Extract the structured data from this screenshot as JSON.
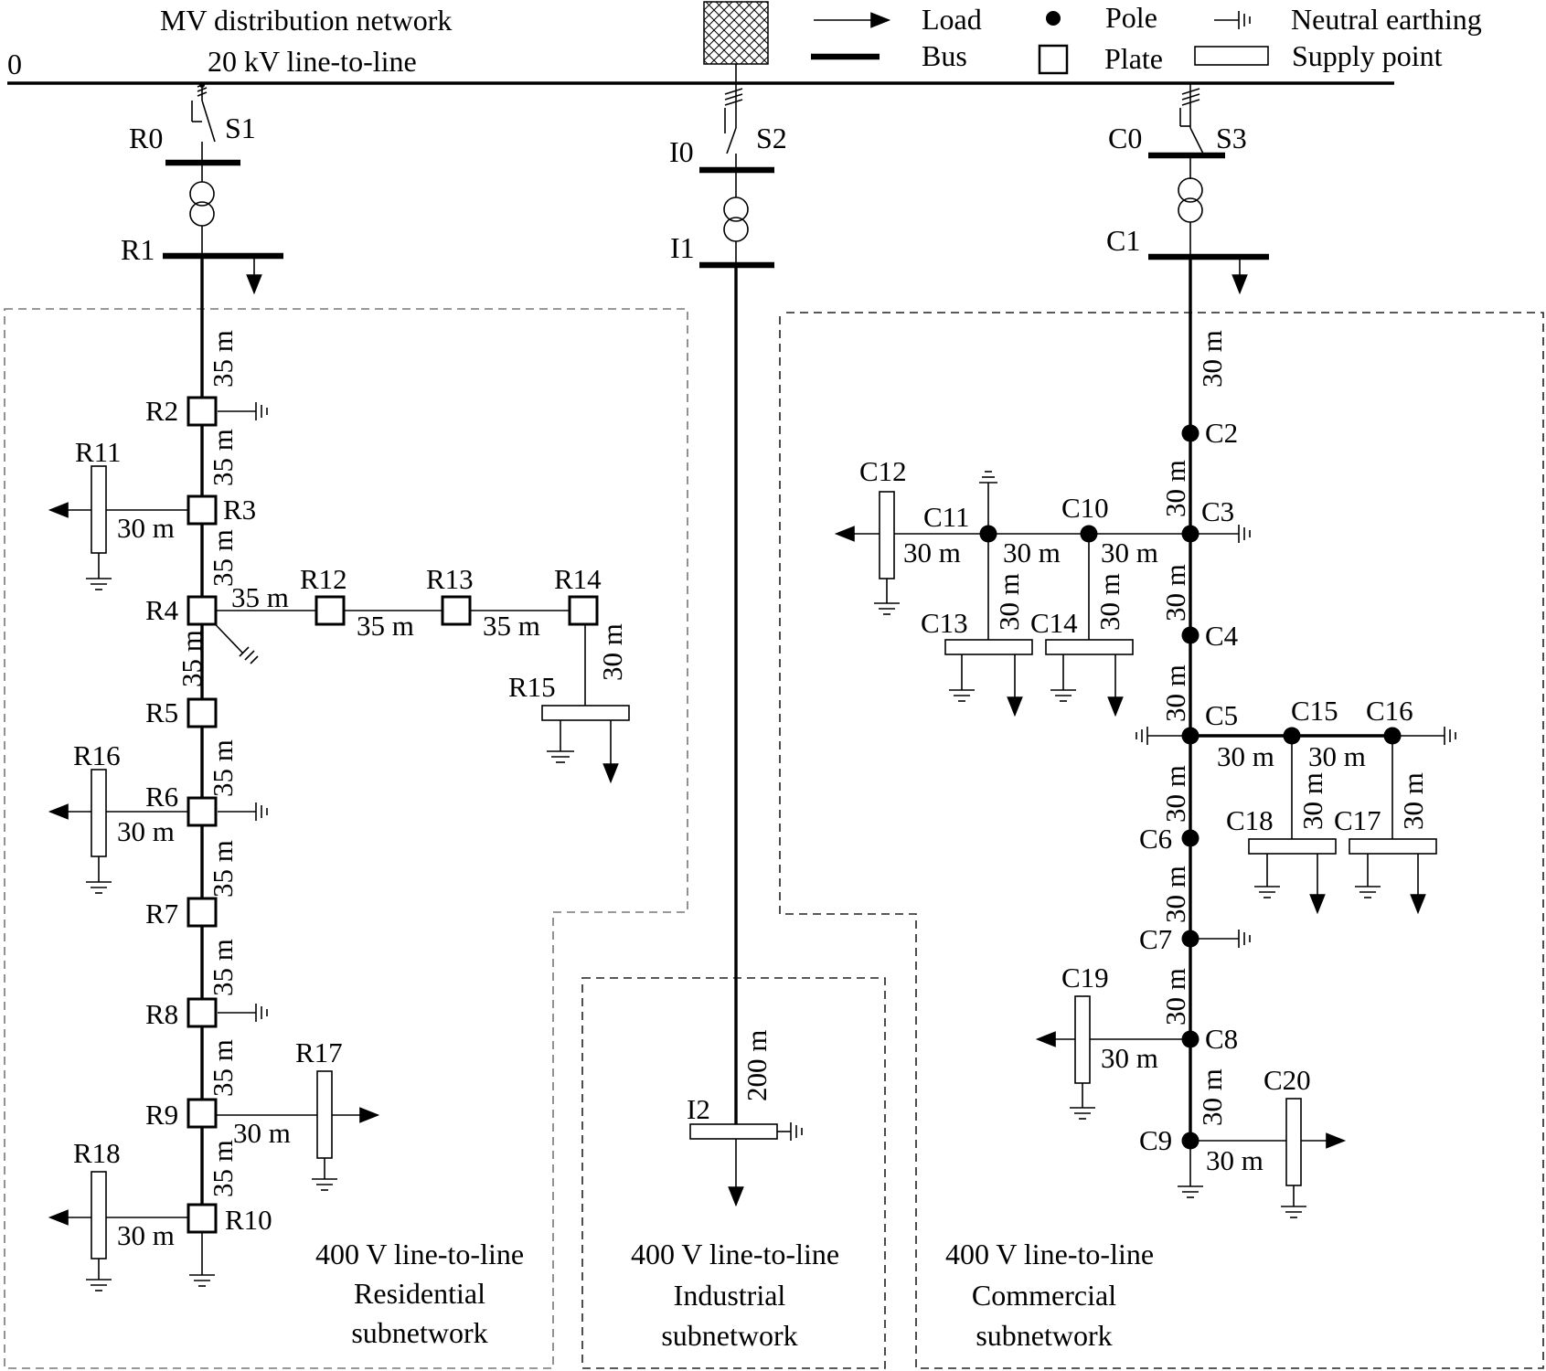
{
  "header": {
    "mv_title": "MV distribution network",
    "mv_voltage": "20 kV line-to-line",
    "zero_label": "0"
  },
  "legend": {
    "load": "Load",
    "bus": "Bus",
    "pole": "Pole",
    "plate": "Plate",
    "neutral_earthing": "Neutral earthing",
    "supply_point": "Supply point"
  },
  "switches": {
    "s1": "S1",
    "s2": "S2",
    "s3": "S3"
  },
  "buses": {
    "r0": "R0",
    "r1": "R1",
    "i0": "I0",
    "i1": "I1",
    "c0": "C0",
    "c1": "C1"
  },
  "residential": {
    "nodes": [
      "R2",
      "R3",
      "R4",
      "R5",
      "R6",
      "R7",
      "R8",
      "R9",
      "R10",
      "R11",
      "R12",
      "R13",
      "R14",
      "R15",
      "R16",
      "R17",
      "R18"
    ],
    "distances": {
      "main": "35 m",
      "branch": "30 m"
    },
    "caption": [
      "400 V line-to-line",
      "Residential",
      "subnetwork"
    ]
  },
  "industrial": {
    "node": "I2",
    "distance": "200 m",
    "caption": [
      "400 V line-to-line",
      "Industrial",
      "subnetwork"
    ]
  },
  "commercial": {
    "nodes": [
      "C2",
      "C3",
      "C4",
      "C5",
      "C6",
      "C7",
      "C8",
      "C9",
      "C10",
      "C11",
      "C12",
      "C13",
      "C14",
      "C15",
      "C16",
      "C17",
      "C18",
      "C19",
      "C20"
    ],
    "distances": {
      "main": "30 m"
    },
    "caption": [
      "400 V line-to-line",
      "Commercial",
      "subnetwork"
    ]
  }
}
